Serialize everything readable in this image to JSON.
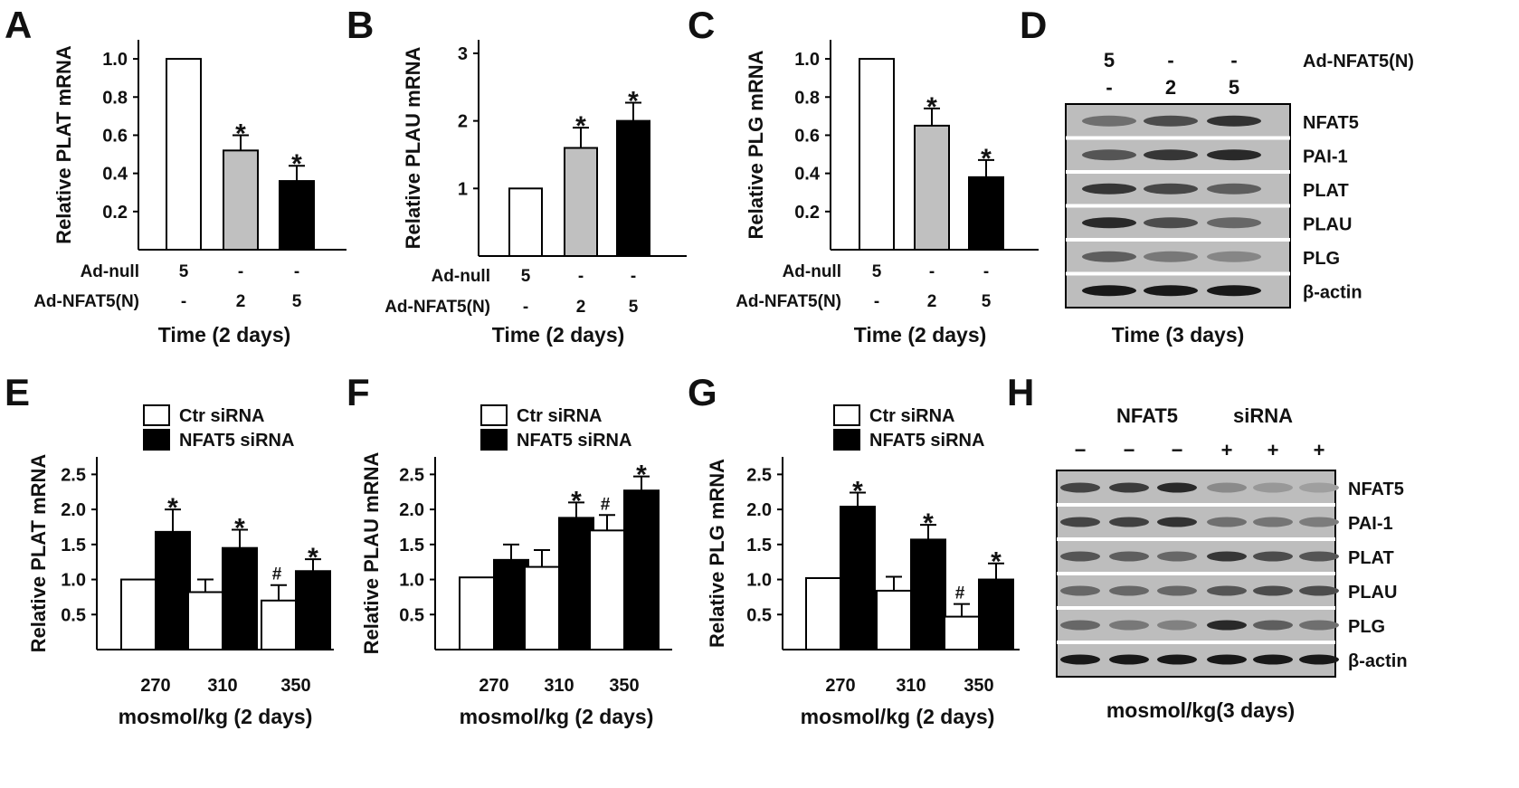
{
  "chart_data": [
    {
      "panel": "A",
      "type": "bar",
      "ylabel": "Relative PLAT mRNA",
      "yticks": [
        0.2,
        0.4,
        0.6,
        0.8,
        1.0
      ],
      "ytick_labels": [
        "0.2",
        "0.4",
        "0.6",
        "0.8",
        "1.0"
      ],
      "ylim": [
        0,
        1.1
      ],
      "row_labels": [
        "Ad-null",
        "Ad-NFAT5(N)"
      ],
      "row_values": [
        [
          "5",
          "-",
          "-"
        ],
        [
          "-",
          "2",
          "5"
        ]
      ],
      "values": [
        1.0,
        0.52,
        0.36
      ],
      "errors": [
        0,
        0.08,
        0.08
      ],
      "fills": [
        "#ffffff",
        "#c0c0c0",
        "#000000"
      ],
      "marks": [
        "",
        "*",
        "*"
      ],
      "xtitle": "Time (2 days)"
    },
    {
      "panel": "B",
      "type": "bar",
      "ylabel": "Relative PLAU mRNA",
      "yticks": [
        1,
        2,
        3
      ],
      "ytick_labels": [
        "1",
        "2",
        "3"
      ],
      "ylim": [
        0,
        3.2
      ],
      "row_labels": [
        "Ad-null",
        "Ad-NFAT5(N)"
      ],
      "row_values": [
        [
          "5",
          "-",
          "-"
        ],
        [
          "-",
          "2",
          "5"
        ]
      ],
      "values": [
        1.0,
        1.6,
        2.0
      ],
      "errors": [
        0,
        0.3,
        0.27
      ],
      "fills": [
        "#ffffff",
        "#c0c0c0",
        "#000000"
      ],
      "marks": [
        "",
        "*",
        "*"
      ],
      "xtitle": "Time (2 days)"
    },
    {
      "panel": "C",
      "type": "bar",
      "ylabel": "Relative PLG mRNA",
      "yticks": [
        0.2,
        0.4,
        0.6,
        0.8,
        1.0
      ],
      "ytick_labels": [
        "0.2",
        "0.4",
        "0.6",
        "0.8",
        "1.0"
      ],
      "ylim": [
        0,
        1.1
      ],
      "row_labels": [
        "Ad-null",
        "Ad-NFAT5(N)"
      ],
      "row_values": [
        [
          "5",
          "-",
          "-"
        ],
        [
          "-",
          "2",
          "5"
        ]
      ],
      "values": [
        1.0,
        0.65,
        0.38
      ],
      "errors": [
        0,
        0.09,
        0.09
      ],
      "fills": [
        "#ffffff",
        "#c0c0c0",
        "#000000"
      ],
      "marks": [
        "",
        "*",
        "*"
      ],
      "xtitle": "Time (2 days)"
    },
    {
      "panel": "E",
      "type": "bar",
      "ylabel": "Relative PLAT mRNA",
      "yticks": [
        0.5,
        1.0,
        1.5,
        2.0,
        2.5
      ],
      "ytick_labels": [
        "0.5",
        "1.0",
        "1.5",
        "2.0",
        "2.5"
      ],
      "ylim": [
        0,
        2.75
      ],
      "legend": [
        "Ctr siRNA",
        "NFAT5 siRNA"
      ],
      "categories": [
        "270",
        "310",
        "350"
      ],
      "series": [
        {
          "name": "Ctr siRNA",
          "fill": "#ffffff",
          "values": [
            1.0,
            0.82,
            0.7
          ],
          "errors": [
            0,
            0.18,
            0.22
          ],
          "marks": [
            "",
            "",
            "#"
          ]
        },
        {
          "name": "NFAT5 siRNA",
          "fill": "#000000",
          "values": [
            1.68,
            1.45,
            1.12
          ],
          "errors": [
            0.32,
            0.26,
            0.17
          ],
          "marks": [
            "*",
            "*",
            "*"
          ]
        }
      ],
      "xtitle": "mosmol/kg (2 days)"
    },
    {
      "panel": "F",
      "type": "bar",
      "ylabel": "Relative PLAU mRNA",
      "yticks": [
        0.5,
        1.0,
        1.5,
        2.0,
        2.5
      ],
      "ytick_labels": [
        "0.5",
        "1.0",
        "1.5",
        "2.0",
        "2.5"
      ],
      "ylim": [
        0,
        2.75
      ],
      "legend": [
        "Ctr siRNA",
        "NFAT5 siRNA"
      ],
      "categories": [
        "270",
        "310",
        "350"
      ],
      "series": [
        {
          "name": "Ctr siRNA",
          "fill": "#ffffff",
          "values": [
            1.03,
            1.18,
            1.7
          ],
          "errors": [
            0,
            0.24,
            0.22
          ],
          "marks": [
            "",
            "",
            "#"
          ]
        },
        {
          "name": "NFAT5 siRNA",
          "fill": "#000000",
          "values": [
            1.28,
            1.88,
            2.27
          ],
          "errors": [
            0.22,
            0.22,
            0.2
          ],
          "marks": [
            "",
            "*",
            "*"
          ]
        }
      ],
      "xtitle": "mosmol/kg (2 days)"
    },
    {
      "panel": "G",
      "type": "bar",
      "ylabel": "Relative PLG mRNA",
      "yticks": [
        0.5,
        1.0,
        1.5,
        2.0,
        2.5
      ],
      "ytick_labels": [
        "0.5",
        "1.0",
        "1.5",
        "2.0",
        "2.5"
      ],
      "ylim": [
        0,
        2.75
      ],
      "legend": [
        "Ctr siRNA",
        "NFAT5 siRNA"
      ],
      "categories": [
        "270",
        "310",
        "350"
      ],
      "series": [
        {
          "name": "Ctr siRNA",
          "fill": "#ffffff",
          "values": [
            1.02,
            0.84,
            0.47
          ],
          "errors": [
            0,
            0.2,
            0.18
          ],
          "marks": [
            "",
            "",
            "#"
          ]
        },
        {
          "name": "NFAT5 siRNA",
          "fill": "#000000",
          "values": [
            2.04,
            1.57,
            1.0
          ],
          "errors": [
            0.2,
            0.21,
            0.23
          ],
          "marks": [
            "*",
            "*",
            "*"
          ]
        }
      ],
      "xtitle": "mosmol/kg (2 days)"
    }
  ],
  "blots": [
    {
      "panel": "D",
      "header_rows": [
        [
          "5",
          "-",
          "-"
        ],
        [
          "-",
          "2",
          "5"
        ]
      ],
      "header_label": "Ad-NFAT5(N)",
      "proteins": [
        "NFAT5",
        "PAI-1",
        "PLAT",
        "PLAU",
        "PLG",
        "β-actin"
      ],
      "lane_intensity": [
        [
          0.45,
          0.65,
          0.8
        ],
        [
          0.6,
          0.78,
          0.85
        ],
        [
          0.78,
          0.68,
          0.55
        ],
        [
          0.85,
          0.65,
          0.5
        ],
        [
          0.55,
          0.4,
          0.32
        ],
        [
          0.95,
          0.95,
          0.95
        ]
      ],
      "xtitle": "Time (3 days)"
    },
    {
      "panel": "H",
      "header_group": "NFAT5",
      "header_group2": "siRNA",
      "lane_signs": [
        "−",
        "−",
        "−",
        "+",
        "+",
        "+"
      ],
      "proteins": [
        "NFAT5",
        "PAI-1",
        "PLAT",
        "PLAU",
        "PLG",
        "β-actin"
      ],
      "lane_intensity": [
        [
          0.7,
          0.75,
          0.85,
          0.3,
          0.22,
          0.18
        ],
        [
          0.7,
          0.72,
          0.8,
          0.45,
          0.42,
          0.38
        ],
        [
          0.6,
          0.55,
          0.5,
          0.78,
          0.65,
          0.6
        ],
        [
          0.5,
          0.5,
          0.5,
          0.6,
          0.65,
          0.65
        ],
        [
          0.5,
          0.4,
          0.35,
          0.85,
          0.55,
          0.45
        ],
        [
          0.95,
          0.95,
          0.95,
          0.95,
          0.95,
          0.95
        ]
      ],
      "xtitle": "mosmol/kg(3 days)"
    }
  ]
}
